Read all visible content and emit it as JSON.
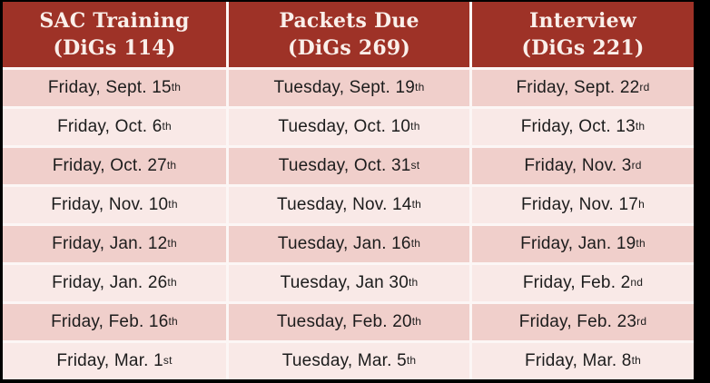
{
  "colors": {
    "page_bg": "#000000",
    "header_bg": "#9E3227",
    "header_text": "#FAEFEA",
    "row_dark": "#F0CFCB",
    "row_light": "#F9E9E7",
    "gap": "#FCF6F5",
    "body_text": "#1C1C1C"
  },
  "table": {
    "headers": [
      {
        "line1": "SAC Training",
        "line2": "(DiGs 114)"
      },
      {
        "line1": "Packets Due",
        "line2": "(DiGs 269)"
      },
      {
        "line1": "Interview",
        "line2": "(DiGs 221)"
      }
    ],
    "rows": [
      [
        "Friday, Sept. 15^th",
        "Tuesday, Sept. 19^th",
        "Friday, Sept. 22^rd"
      ],
      [
        "Friday, Oct. 6^th",
        "Tuesday, Oct. 10^th",
        "Friday, Oct. 13^th"
      ],
      [
        "Friday, Oct. 27^th",
        "Tuesday, Oct. 31^st",
        "Friday, Nov. 3^rd"
      ],
      [
        "Friday, Nov. 10^th",
        "Tuesday, Nov. 14^th",
        "Friday, Nov. 17^h"
      ],
      [
        "Friday, Jan. 12^th",
        "Tuesday, Jan. 16^th",
        "Friday, Jan. 19^th"
      ],
      [
        "Friday, Jan. 26^th",
        "Tuesday, Jan 30^th",
        "Friday, Feb. 2^nd"
      ],
      [
        "Friday, Feb. 16^th",
        "Tuesday, Feb. 20^th",
        "Friday, Feb. 23^rd"
      ],
      [
        "Friday, Mar. 1^st",
        "Tuesday, Mar. 5^th",
        "Friday, Mar. 8^th"
      ]
    ]
  },
  "chart_data": {
    "type": "table",
    "title": "",
    "columns": [
      "SAC Training (DiGs 114)",
      "Packets Due (DiGs 269)",
      "Interview (DiGs 221)"
    ],
    "rows": [
      [
        "Friday, Sept. 15th",
        "Tuesday, Sept. 19th",
        "Friday, Sept. 22rd"
      ],
      [
        "Friday, Oct. 6th",
        "Tuesday, Oct. 10th",
        "Friday, Oct. 13th"
      ],
      [
        "Friday, Oct. 27th",
        "Tuesday, Oct. 31st",
        "Friday, Nov. 3rd"
      ],
      [
        "Friday, Nov. 10th",
        "Tuesday, Nov. 14th",
        "Friday, Nov. 17h"
      ],
      [
        "Friday, Jan. 12th",
        "Tuesday, Jan. 16th",
        "Friday, Jan. 19th"
      ],
      [
        "Friday, Jan. 26th",
        "Tuesday, Jan 30th",
        "Friday, Feb. 2nd"
      ],
      [
        "Friday, Feb. 16th",
        "Tuesday, Feb. 20th",
        "Friday, Feb. 23rd"
      ],
      [
        "Friday, Mar. 1st",
        "Tuesday, Mar. 5th",
        "Friday, Mar. 8th"
      ]
    ],
    "layout": {
      "header_style": "dark-red banded header, white slab-serif text",
      "row_style": "alternating pink shades, darker first",
      "grid": "white gutters between cells"
    }
  }
}
